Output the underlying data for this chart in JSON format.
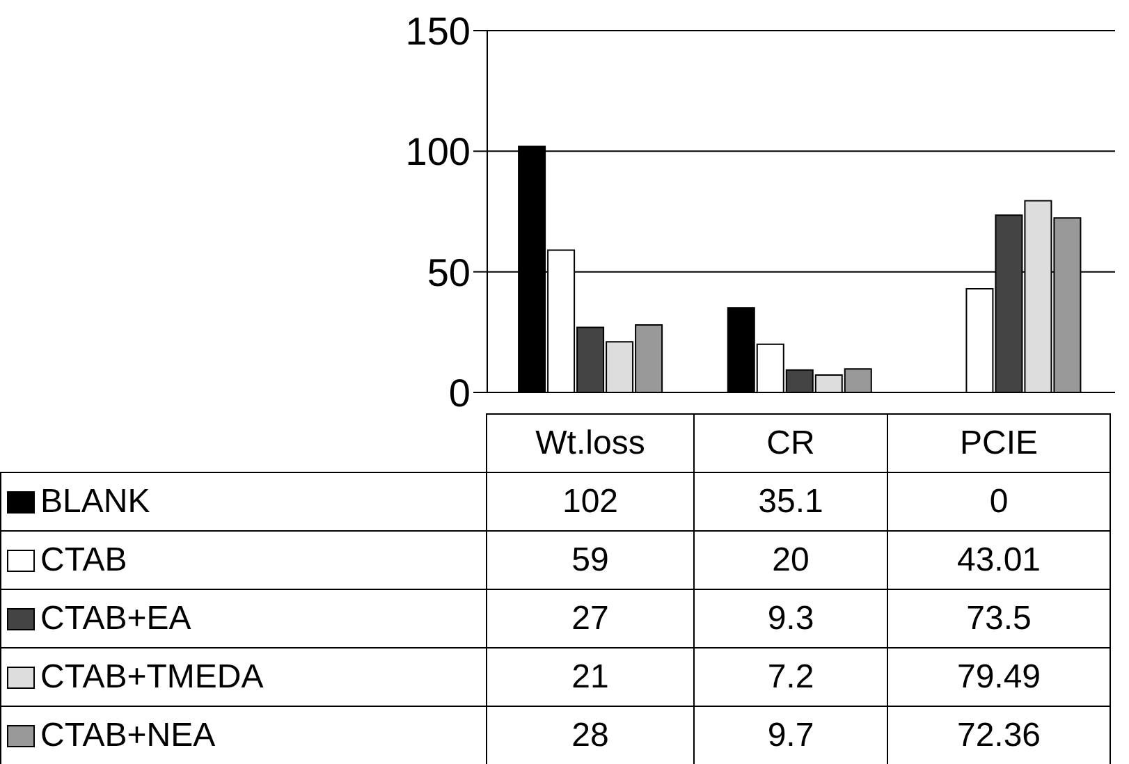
{
  "chart_data": {
    "type": "bar",
    "categories": [
      "Wt.loss",
      "CR",
      "PCIE"
    ],
    "series": [
      {
        "name": "BLANK",
        "color": "#000000",
        "values": [
          102,
          35.1,
          0
        ]
      },
      {
        "name": "CTAB",
        "color": "#ffffff",
        "values": [
          59,
          20,
          43.01
        ]
      },
      {
        "name": "CTAB+EA",
        "color": "#444444",
        "values": [
          27,
          9.3,
          73.5
        ]
      },
      {
        "name": "CTAB+TMEDA",
        "color": "#dddddd",
        "values": [
          21,
          7.2,
          79.49
        ]
      },
      {
        "name": "CTAB+NEA",
        "color": "#999999",
        "values": [
          28,
          9.7,
          72.36
        ]
      }
    ],
    "ylim": [
      0,
      150
    ],
    "yticks": [
      0,
      50,
      100,
      150
    ],
    "grid": "y",
    "legend": "bottom",
    "data_labels": true
  }
}
